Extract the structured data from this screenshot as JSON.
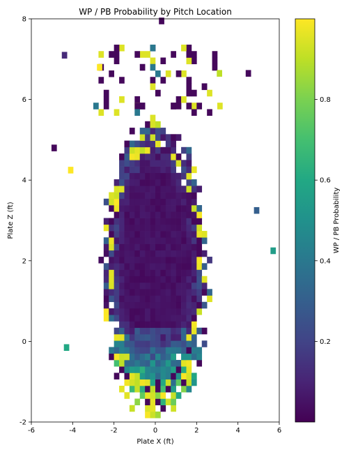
{
  "chart_data": {
    "type": "heatmap",
    "title": "WP / PB Probability by Pitch Location",
    "xlabel": "Plate X (ft)",
    "ylabel": "Plate Z (ft)",
    "xlim": [
      -6,
      6
    ],
    "ylim": [
      -2,
      8
    ],
    "x_ticks": [
      "-6",
      "-4",
      "-2",
      "0",
      "2",
      "4",
      "6"
    ],
    "y_ticks": [
      "-2",
      "0",
      "2",
      "4",
      "6",
      "8"
    ],
    "grid": false,
    "colormap": "viridis",
    "bin_size": [
      0.25,
      0.16
    ],
    "colorbar": {
      "label": "WP / PB Probability",
      "range": [
        0,
        1
      ],
      "ticks": [
        "0.2",
        "0.4",
        "0.6",
        "0.8"
      ]
    },
    "description_of_values": "Center of pitch cloud (x≈-1.5..1.5, z≈1..5) has low probability (~0.0-0.05); edges and low pitches (z<0) have higher probability (0.3-1.0).",
    "sample_cells": [
      {
        "x": 5.7,
        "z": 2.25,
        "value": 0.55
      },
      {
        "x": 4.9,
        "z": 3.25,
        "value": 0.3
      },
      {
        "x": -4.4,
        "z": 7.1,
        "value": 0.12
      },
      {
        "x": -4.9,
        "z": 4.8,
        "value": 0.02
      },
      {
        "x": 0.3,
        "z": 7.95,
        "value": 0.02
      },
      {
        "x": 3.1,
        "z": 6.65,
        "value": 0.9
      },
      {
        "x": 4.5,
        "z": 6.65,
        "value": 0.02
      },
      {
        "x": -2.7,
        "z": 6.8,
        "value": 1.0
      },
      {
        "x": -4.1,
        "z": 4.25,
        "value": 1.0
      },
      {
        "x": -4.3,
        "z": -0.15,
        "value": 0.6
      }
    ]
  }
}
